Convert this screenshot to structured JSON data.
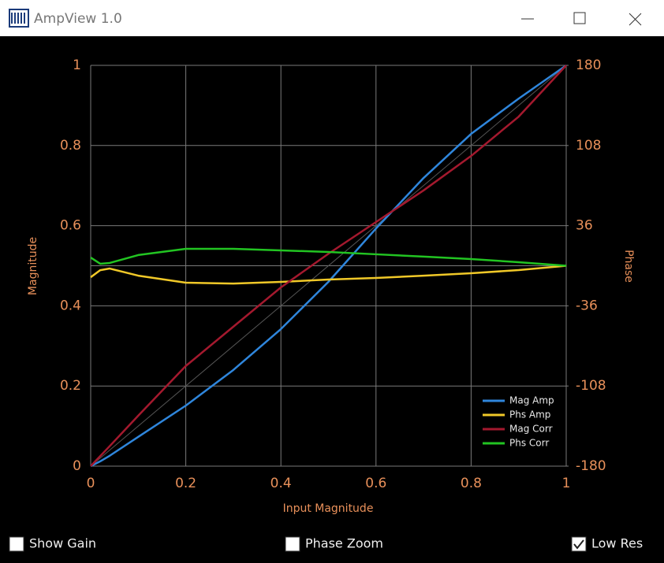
{
  "window": {
    "title": "AmpView 1.0"
  },
  "chart_data": {
    "type": "line",
    "xlabel": "Input Magnitude",
    "ylabel": "Magnitude",
    "y2label": "Phase",
    "x": [
      0,
      0.02,
      0.04,
      0.1,
      0.2,
      0.3,
      0.4,
      0.5,
      0.6,
      0.7,
      0.8,
      0.9,
      1
    ],
    "series": [
      {
        "name": "Mag Amp",
        "color": "#2f86dc",
        "values": [
          0,
          0.012,
          0.026,
          0.073,
          0.151,
          0.24,
          0.342,
          0.46,
          0.593,
          0.719,
          0.829,
          0.917,
          1
        ]
      },
      {
        "name": "Phs Amp",
        "color": "#f0c828",
        "axis": "y2",
        "values": [
          -10.3,
          -4,
          -2.5,
          -8.9,
          -15.2,
          -16,
          -14.5,
          -12.4,
          -11,
          -8.9,
          -6.7,
          -3.9,
          0
        ]
      },
      {
        "name": "Mag Corr",
        "color": "#a4192e",
        "values": [
          0,
          0.025,
          0.05,
          0.126,
          0.25,
          0.348,
          0.446,
          0.53,
          0.609,
          0.688,
          0.774,
          0.872,
          1
        ]
      },
      {
        "name": "Phs Corr",
        "color": "#22c422",
        "axis": "y2",
        "values": [
          7.4,
          1.8,
          2.5,
          9.6,
          15.2,
          15.2,
          13.8,
          12.4,
          10.3,
          8.2,
          6,
          3.2,
          0
        ]
      }
    ],
    "xlim": [
      0,
      1
    ],
    "xticks": [
      0,
      0.2,
      0.4,
      0.6,
      0.8,
      1
    ],
    "ylim": [
      0,
      1
    ],
    "yticks": [
      0,
      0.2,
      0.4,
      0.6,
      0.8,
      1
    ],
    "y2lim": [
      -180,
      180
    ],
    "y2ticks": [
      -180,
      -108,
      -36,
      36,
      108,
      180
    ],
    "grid": true,
    "legend": "lower right"
  },
  "controls": [
    {
      "label": "Show Gain",
      "checked": false
    },
    {
      "label": "Phase Zoom",
      "checked": false
    },
    {
      "label": "Low Res",
      "checked": true
    }
  ]
}
